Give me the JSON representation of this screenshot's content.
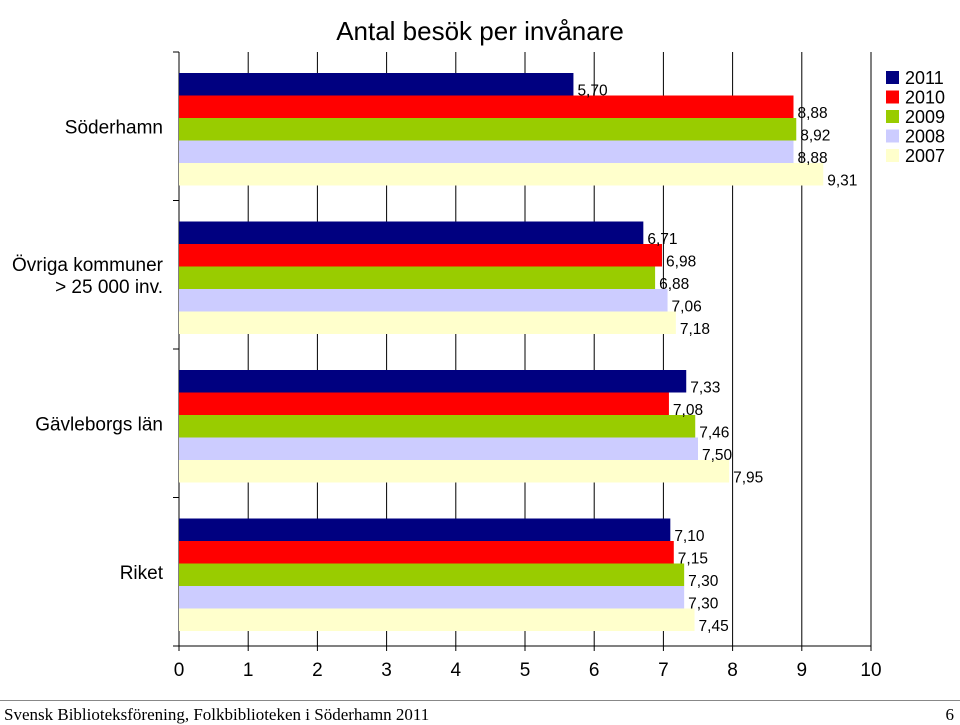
{
  "chart_data": {
    "type": "bar",
    "orientation": "horizontal",
    "title": "Antal besök per invånare",
    "xlabel": "",
    "ylabel": "",
    "xlim": [
      0,
      10
    ],
    "x_ticks": [
      "0",
      "1",
      "2",
      "3",
      "4",
      "5",
      "6",
      "7",
      "8",
      "9",
      "10"
    ],
    "grid": "vertical",
    "legend_position": "top-right",
    "categories": [
      "Söderhamn",
      "Övriga kommuner > 25 000 inv.",
      "Gävleborgs län",
      "Riket"
    ],
    "series": [
      {
        "name": "2011",
        "color": "#000080",
        "values": [
          5.7,
          6.71,
          7.33,
          7.1
        ],
        "labels": [
          "5,70",
          "6,71",
          "7,33",
          "7,10"
        ]
      },
      {
        "name": "2010",
        "color": "#ff0000",
        "values": [
          8.88,
          6.98,
          7.08,
          7.15
        ],
        "labels": [
          "8,88",
          "6,98",
          "7,08",
          "7,15"
        ]
      },
      {
        "name": "2009",
        "color": "#99cc00",
        "values": [
          8.92,
          6.88,
          7.46,
          7.3
        ],
        "labels": [
          "8,92",
          "6,88",
          "7,46",
          "7,30"
        ]
      },
      {
        "name": "2008",
        "color": "#ccccff",
        "values": [
          8.88,
          7.06,
          7.5,
          7.3
        ],
        "labels": [
          "8,88",
          "7,06",
          "7,50",
          "7,30"
        ]
      },
      {
        "name": "2007",
        "color": "#ffffcc",
        "values": [
          9.31,
          7.18,
          7.95,
          7.45
        ],
        "labels": [
          "9,31",
          "7,18",
          "7,95",
          "7,45"
        ]
      }
    ],
    "category_lines": [
      [
        "Söderhamn"
      ],
      [
        "Övriga kommuner",
        "> 25 000 inv."
      ],
      [
        "Gävleborgs län"
      ],
      [
        "Riket"
      ]
    ]
  },
  "footer": {
    "text": "Svensk Biblioteksförening, Folkbiblioteken i Söderhamn 2011",
    "page": "6"
  }
}
